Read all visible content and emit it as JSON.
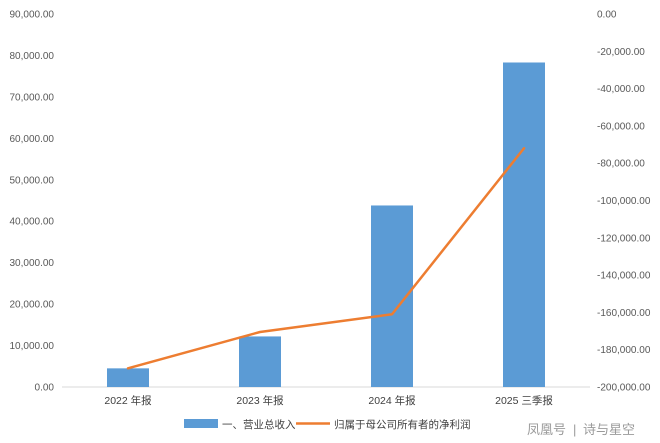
{
  "chart_data": {
    "type": "bar",
    "title": "",
    "categories": [
      "2022 年报",
      "2023 年报",
      "2024 年报",
      "2025 三季报"
    ],
    "series": [
      {
        "name": "一、营业总收入",
        "kind": "bar",
        "axis": "left",
        "color": "#5b9bd5",
        "values": [
          4500,
          12200,
          43800,
          78300
        ]
      },
      {
        "name": "归属于母公司所有者的净利润",
        "kind": "line",
        "axis": "right",
        "color": "#ed7d31",
        "values": [
          -190000,
          -170500,
          -161000,
          -72000
        ]
      }
    ],
    "y_left": {
      "min": 0,
      "max": 90000,
      "step": 10000,
      "tick_labels": [
        "0.00",
        "10,000.00",
        "20,000.00",
        "30,000.00",
        "40,000.00",
        "50,000.00",
        "60,000.00",
        "70,000.00",
        "80,000.00",
        "90,000.00"
      ]
    },
    "y_right": {
      "min": -200000,
      "max": 0,
      "step": 20000,
      "tick_labels": [
        "-200,000.00",
        "-180,000.00",
        "-160,000.00",
        "-140,000.00",
        "-120,000.00",
        "-100,000.00",
        "-80,000.00",
        "-60,000.00",
        "-40,000.00",
        "-20,000.00",
        "0.00"
      ]
    },
    "grid": false,
    "legend_position": "bottom"
  },
  "watermark": {
    "brand": "凤凰号",
    "separator": "|",
    "author": "诗与星空"
  }
}
